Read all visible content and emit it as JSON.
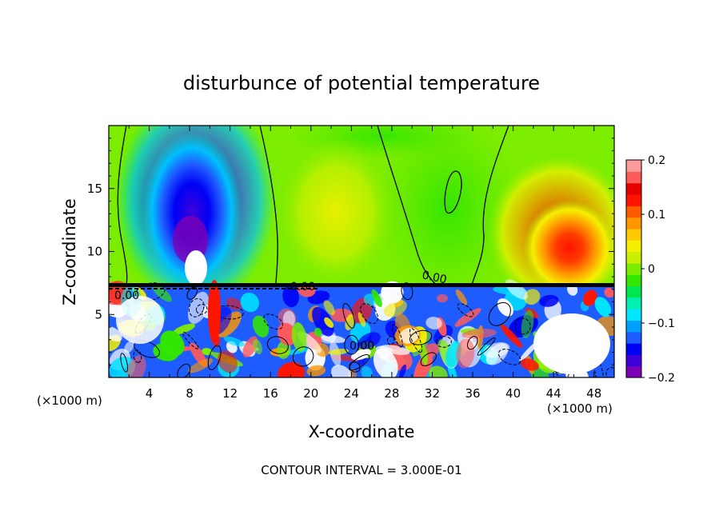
{
  "chart_data": {
    "type": "heatmap",
    "title": "disturbunce of potential temperature",
    "xlabel": "X-coordinate",
    "ylabel": "Z-coordinate",
    "x_units": "(×1000 m)",
    "z_units": "(×1000 m)",
    "xlim": [
      0,
      50
    ],
    "ylim": [
      0,
      20
    ],
    "x_ticks": [
      4,
      8,
      12,
      16,
      20,
      24,
      28,
      32,
      36,
      40,
      44,
      48
    ],
    "y_ticks": [
      5,
      10,
      15
    ],
    "contour_interval_text": "CONTOUR INTERVAL = 3.000E-01",
    "contour_label": "0.00",
    "colorbar": {
      "min": -0.2,
      "max": 0.2,
      "tick_values": [
        0.2,
        0.1,
        0,
        -0.1,
        -0.2
      ],
      "tick_labels": [
        "0.2",
        "0.1",
        "0",
        "−0.1",
        "−0.2"
      ],
      "colors": [
        "#7e00b4",
        "#3d00dc",
        "#0000f5",
        "#1e5cff",
        "#00a0ff",
        "#00e6ff",
        "#00f0b0",
        "#00e650",
        "#32e600",
        "#7ded00",
        "#c8f000",
        "#f5f000",
        "#ffc800",
        "#ff9600",
        "#ff5a00",
        "#ff1400",
        "#e60000",
        "#ff5a5a",
        "#ff9a9a"
      ]
    },
    "features": [
      {
        "name": "cold anomaly upper left",
        "x": 8.5,
        "z": 12.0,
        "value": -0.19
      },
      {
        "name": "warm anomaly upper right",
        "x": 45.0,
        "z": 10.5,
        "value": 0.15
      },
      {
        "name": "weak warm band mid",
        "x": 24.5,
        "z": 11.5,
        "value": 0.06
      },
      {
        "name": "tropopause inversion",
        "z": 7.3,
        "value": 0.2
      },
      {
        "name": "turbulent lower layer",
        "z_range": [
          0,
          7.3
        ],
        "value": "mixed"
      }
    ]
  }
}
